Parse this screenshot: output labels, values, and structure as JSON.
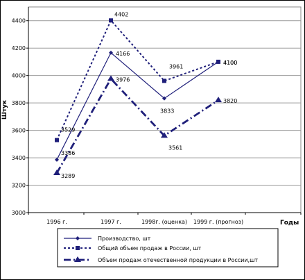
{
  "chart_data": {
    "type": "line",
    "categories": [
      "1996 г.",
      "1997 г.",
      "1998г. (оценка)",
      "1999 г. (прогноз)"
    ],
    "ylabel": "Штук",
    "xlabel": "Годы",
    "ylim": [
      3000,
      4500
    ],
    "yticks": [
      3000,
      3200,
      3400,
      3600,
      3800,
      4000,
      4200,
      4400
    ],
    "grid": true,
    "legend_position": "bottom",
    "series": [
      {
        "name": "Производство, шт",
        "values": [
          3386,
          4166,
          3833,
          4100
        ],
        "style": "solid",
        "marker": "diamond",
        "color": "#1f1f7a"
      },
      {
        "name": "Общий объем продаж в России, шт",
        "values": [
          3529,
          4402,
          3961,
          4100
        ],
        "style": "dotted",
        "marker": "square",
        "color": "#1f1f7a"
      },
      {
        "name": "Объем продаж отечественной продукции в России,шт",
        "values": [
          3289,
          3976,
          3561,
          3820
        ],
        "style": "dashdot",
        "marker": "triangle",
        "color": "#1f1f7a"
      }
    ]
  }
}
